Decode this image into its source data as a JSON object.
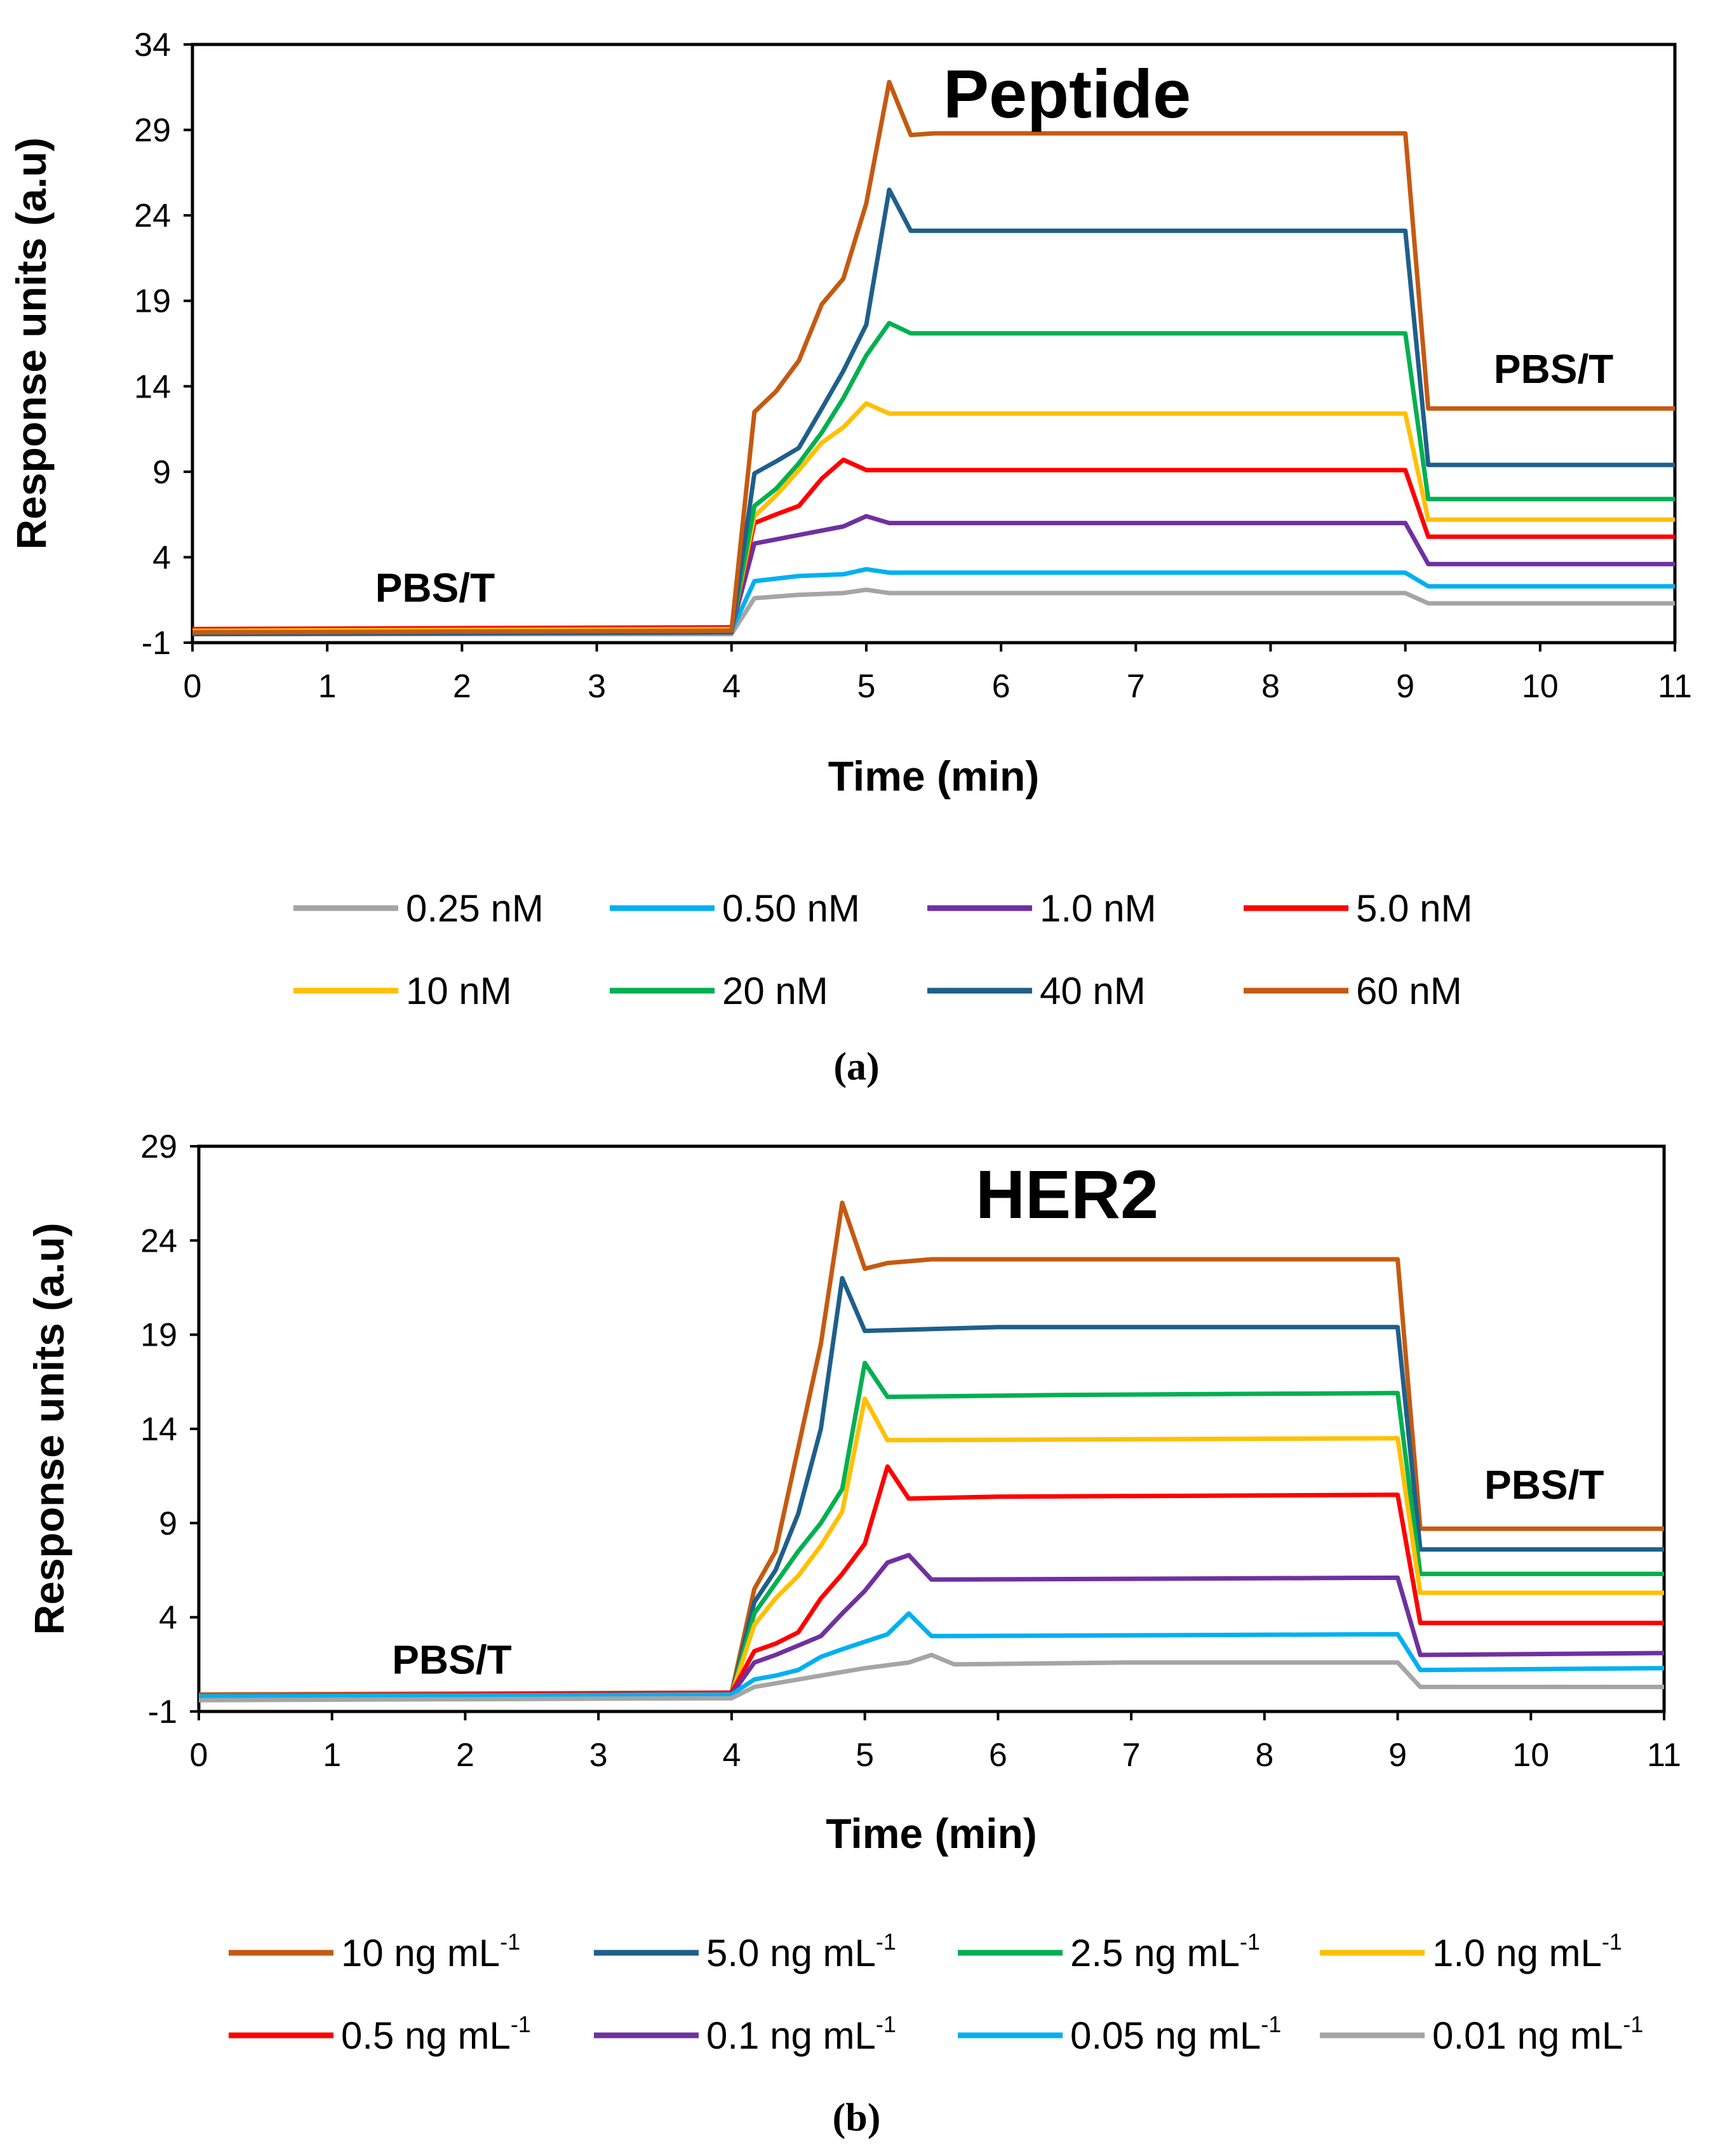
{
  "chart_data": [
    {
      "type": "line",
      "panel": "a",
      "title": "Peptide",
      "xlabel": "Time (min)",
      "ylabel": "Response units (a.u)",
      "xlim": [
        0,
        11
      ],
      "ylim": [
        -1,
        34
      ],
      "xticks": [
        "0",
        "1",
        "2",
        "3",
        "4",
        "5",
        "6",
        "7",
        "8",
        "9",
        "10",
        "11"
      ],
      "yticks": [
        "-1",
        "4",
        "9",
        "14",
        "19",
        "24",
        "29",
        "34"
      ],
      "grid": false,
      "legend_position": "bottom",
      "annotations": [
        {
          "text": "PBS/T",
          "x": 1.8,
          "y": 1.4
        },
        {
          "text": "PBS/T",
          "x": 10.1,
          "y": 14.2
        }
      ],
      "series": [
        {
          "name": "0.25 nM",
          "color": "#a5a5a5",
          "points": [
            [
              0,
              -0.5
            ],
            [
              4,
              -0.5
            ],
            [
              4.17,
              1.6
            ],
            [
              4.5,
              1.8
            ],
            [
              4.83,
              1.9
            ],
            [
              5.0,
              2.1
            ],
            [
              5.17,
              1.9
            ],
            [
              9.0,
              1.9
            ],
            [
              9.17,
              1.3
            ],
            [
              11,
              1.3
            ]
          ]
        },
        {
          "name": "0.50 nM",
          "color": "#00b0f0",
          "points": [
            [
              0,
              -0.4
            ],
            [
              4,
              -0.3
            ],
            [
              4.17,
              2.6
            ],
            [
              4.5,
              2.9
            ],
            [
              4.83,
              3.0
            ],
            [
              5.0,
              3.3
            ],
            [
              5.17,
              3.1
            ],
            [
              9.0,
              3.1
            ],
            [
              9.17,
              2.3
            ],
            [
              11,
              2.3
            ]
          ]
        },
        {
          "name": "1.0 nM",
          "color": "#7030a0",
          "points": [
            [
              0,
              -0.3
            ],
            [
              4,
              -0.2
            ],
            [
              4.17,
              4.8
            ],
            [
              4.5,
              5.3
            ],
            [
              4.83,
              5.8
            ],
            [
              5.0,
              6.4
            ],
            [
              5.17,
              6.0
            ],
            [
              9.0,
              6.0
            ],
            [
              9.17,
              3.6
            ],
            [
              11,
              3.6
            ]
          ]
        },
        {
          "name": "5.0 nM",
          "color": "#ff0000",
          "points": [
            [
              0,
              -0.2
            ],
            [
              4,
              -0.1
            ],
            [
              4.17,
              6.0
            ],
            [
              4.33,
              6.5
            ],
            [
              4.5,
              7.0
            ],
            [
              4.67,
              8.6
            ],
            [
              4.83,
              9.7
            ],
            [
              5.0,
              9.1
            ],
            [
              9.0,
              9.1
            ],
            [
              9.17,
              5.2
            ],
            [
              11,
              5.2
            ]
          ]
        },
        {
          "name": "10 nM",
          "color": "#ffc000",
          "points": [
            [
              0,
              -0.3
            ],
            [
              4,
              -0.2
            ],
            [
              4.17,
              6.4
            ],
            [
              4.33,
              7.6
            ],
            [
              4.5,
              9.1
            ],
            [
              4.67,
              10.7
            ],
            [
              4.83,
              11.6
            ],
            [
              5.0,
              13.0
            ],
            [
              5.17,
              12.4
            ],
            [
              9.0,
              12.4
            ],
            [
              9.17,
              6.2
            ],
            [
              11,
              6.2
            ]
          ]
        },
        {
          "name": "20 nM",
          "color": "#00b050",
          "points": [
            [
              0,
              -0.4
            ],
            [
              4,
              -0.3
            ],
            [
              4.17,
              7.0
            ],
            [
              4.33,
              8.0
            ],
            [
              4.5,
              9.5
            ],
            [
              4.67,
              11.3
            ],
            [
              4.83,
              13.3
            ],
            [
              5.0,
              15.8
            ],
            [
              5.17,
              17.7
            ],
            [
              5.33,
              17.1
            ],
            [
              9.0,
              17.1
            ],
            [
              9.17,
              7.4
            ],
            [
              11,
              7.4
            ]
          ]
        },
        {
          "name": "40 nM",
          "color": "#1f5f8b",
          "points": [
            [
              0,
              -0.5
            ],
            [
              4,
              -0.4
            ],
            [
              4.17,
              8.9
            ],
            [
              4.33,
              9.6
            ],
            [
              4.5,
              10.4
            ],
            [
              4.67,
              12.7
            ],
            [
              4.83,
              14.9
            ],
            [
              5.0,
              17.6
            ],
            [
              5.17,
              25.5
            ],
            [
              5.33,
              23.1
            ],
            [
              9.0,
              23.1
            ],
            [
              9.17,
              9.4
            ],
            [
              11,
              9.4
            ]
          ]
        },
        {
          "name": "60 nM",
          "color": "#c55a11",
          "points": [
            [
              0,
              -0.4
            ],
            [
              4,
              -0.3
            ],
            [
              4.17,
              12.5
            ],
            [
              4.33,
              13.7
            ],
            [
              4.5,
              15.5
            ],
            [
              4.67,
              18.8
            ],
            [
              4.83,
              20.3
            ],
            [
              5.0,
              24.7
            ],
            [
              5.17,
              31.8
            ],
            [
              5.33,
              28.7
            ],
            [
              5.5,
              28.8
            ],
            [
              9.0,
              28.8
            ],
            [
              9.17,
              12.7
            ],
            [
              11,
              12.7
            ]
          ]
        }
      ]
    },
    {
      "type": "line",
      "panel": "b",
      "title": "HER2",
      "xlabel": "Time (min)",
      "ylabel": "Response units (a.u)",
      "xlim": [
        0,
        11
      ],
      "ylim": [
        -1,
        29
      ],
      "xticks": [
        "0",
        "1",
        "2",
        "3",
        "4",
        "5",
        "6",
        "7",
        "8",
        "9",
        "10",
        "11"
      ],
      "yticks": [
        "-1",
        "4",
        "9",
        "14",
        "19",
        "24",
        "29"
      ],
      "grid": false,
      "legend_position": "bottom",
      "annotations": [
        {
          "text": "PBS/T",
          "x": 1.9,
          "y": 1.0
        },
        {
          "text": "PBS/T",
          "x": 10.1,
          "y": 10.3
        }
      ],
      "series": [
        {
          "name": "10 ng mL",
          "sup": "-1",
          "color": "#c55a11",
          "points": [
            [
              0,
              -0.1
            ],
            [
              4,
              0.0
            ],
            [
              4.17,
              5.5
            ],
            [
              4.33,
              7.5
            ],
            [
              4.5,
              13.0
            ],
            [
              4.67,
              18.5
            ],
            [
              4.83,
              26.0
            ],
            [
              5.0,
              22.5
            ],
            [
              5.17,
              22.8
            ],
            [
              5.5,
              23.0
            ],
            [
              9.0,
              23.0
            ],
            [
              9.17,
              8.7
            ],
            [
              11,
              8.7
            ]
          ]
        },
        {
          "name": "5.0 ng mL",
          "sup": "-1",
          "color": "#1f5f8b",
          "points": [
            [
              0,
              -0.2
            ],
            [
              4,
              -0.1
            ],
            [
              4.17,
              4.8
            ],
            [
              4.33,
              6.5
            ],
            [
              4.5,
              9.5
            ],
            [
              4.67,
              14.0
            ],
            [
              4.83,
              22.0
            ],
            [
              5.0,
              19.2
            ],
            [
              6.0,
              19.4
            ],
            [
              9.0,
              19.4
            ],
            [
              9.17,
              7.6
            ],
            [
              11,
              7.6
            ]
          ]
        },
        {
          "name": "2.5 ng mL",
          "sup": "-1",
          "color": "#00b050",
          "points": [
            [
              0,
              -0.2
            ],
            [
              4,
              -0.1
            ],
            [
              4.17,
              4.2
            ],
            [
              4.33,
              5.8
            ],
            [
              4.5,
              7.5
            ],
            [
              4.67,
              9.0
            ],
            [
              4.83,
              10.8
            ],
            [
              5.0,
              17.5
            ],
            [
              5.17,
              15.7
            ],
            [
              6.5,
              15.8
            ],
            [
              9.0,
              15.9
            ],
            [
              9.17,
              6.3
            ],
            [
              11,
              6.3
            ]
          ]
        },
        {
          "name": "1.0 ng mL",
          "sup": "-1",
          "color": "#ffc000",
          "points": [
            [
              0,
              -0.2
            ],
            [
              4,
              -0.1
            ],
            [
              4.17,
              3.6
            ],
            [
              4.33,
              5.0
            ],
            [
              4.5,
              6.2
            ],
            [
              4.67,
              7.8
            ],
            [
              4.83,
              9.6
            ],
            [
              5.0,
              15.6
            ],
            [
              5.17,
              13.4
            ],
            [
              9.0,
              13.5
            ],
            [
              9.17,
              5.3
            ],
            [
              11,
              5.3
            ]
          ]
        },
        {
          "name": "0.5 ng mL",
          "sup": "-1",
          "color": "#ff0000",
          "points": [
            [
              0,
              -0.2
            ],
            [
              4,
              0.0
            ],
            [
              4.17,
              2.2
            ],
            [
              4.33,
              2.6
            ],
            [
              4.5,
              3.2
            ],
            [
              4.67,
              5.0
            ],
            [
              4.83,
              6.3
            ],
            [
              5.0,
              7.9
            ],
            [
              5.17,
              12.0
            ],
            [
              5.33,
              10.3
            ],
            [
              6.0,
              10.4
            ],
            [
              9.0,
              10.5
            ],
            [
              9.17,
              3.7
            ],
            [
              11,
              3.7
            ]
          ]
        },
        {
          "name": "0.1 ng mL",
          "sup": "-1",
          "color": "#7030a0",
          "points": [
            [
              0,
              -0.2
            ],
            [
              4,
              -0.1
            ],
            [
              4.17,
              1.6
            ],
            [
              4.33,
              2.0
            ],
            [
              4.5,
              2.5
            ],
            [
              4.67,
              3.0
            ],
            [
              4.83,
              4.2
            ],
            [
              5.0,
              5.4
            ],
            [
              5.17,
              6.9
            ],
            [
              5.33,
              7.3
            ],
            [
              5.5,
              6.0
            ],
            [
              9.0,
              6.1
            ],
            [
              9.17,
              2.0
            ],
            [
              11,
              2.1
            ]
          ]
        },
        {
          "name": "0.05 ng mL",
          "sup": "-1",
          "color": "#00b0f0",
          "points": [
            [
              0,
              -0.2
            ],
            [
              4,
              -0.1
            ],
            [
              4.17,
              0.7
            ],
            [
              4.33,
              0.9
            ],
            [
              4.5,
              1.2
            ],
            [
              4.67,
              1.9
            ],
            [
              4.83,
              2.3
            ],
            [
              5.0,
              2.7
            ],
            [
              5.17,
              3.1
            ],
            [
              5.33,
              4.2
            ],
            [
              5.5,
              3.0
            ],
            [
              9.0,
              3.1
            ],
            [
              9.17,
              1.2
            ],
            [
              11,
              1.3
            ]
          ]
        },
        {
          "name": "0.01 ng mL",
          "sup": "-1",
          "color": "#a5a5a5",
          "points": [
            [
              0,
              -0.4
            ],
            [
              4,
              -0.3
            ],
            [
              4.17,
              0.3
            ],
            [
              4.5,
              0.7
            ],
            [
              5.0,
              1.3
            ],
            [
              5.33,
              1.6
            ],
            [
              5.5,
              2.0
            ],
            [
              5.67,
              1.5
            ],
            [
              7.0,
              1.6
            ],
            [
              9.0,
              1.6
            ],
            [
              9.17,
              0.3
            ],
            [
              11,
              0.3
            ]
          ]
        }
      ]
    }
  ],
  "captions": {
    "a": "(a)",
    "b": "(b)"
  }
}
